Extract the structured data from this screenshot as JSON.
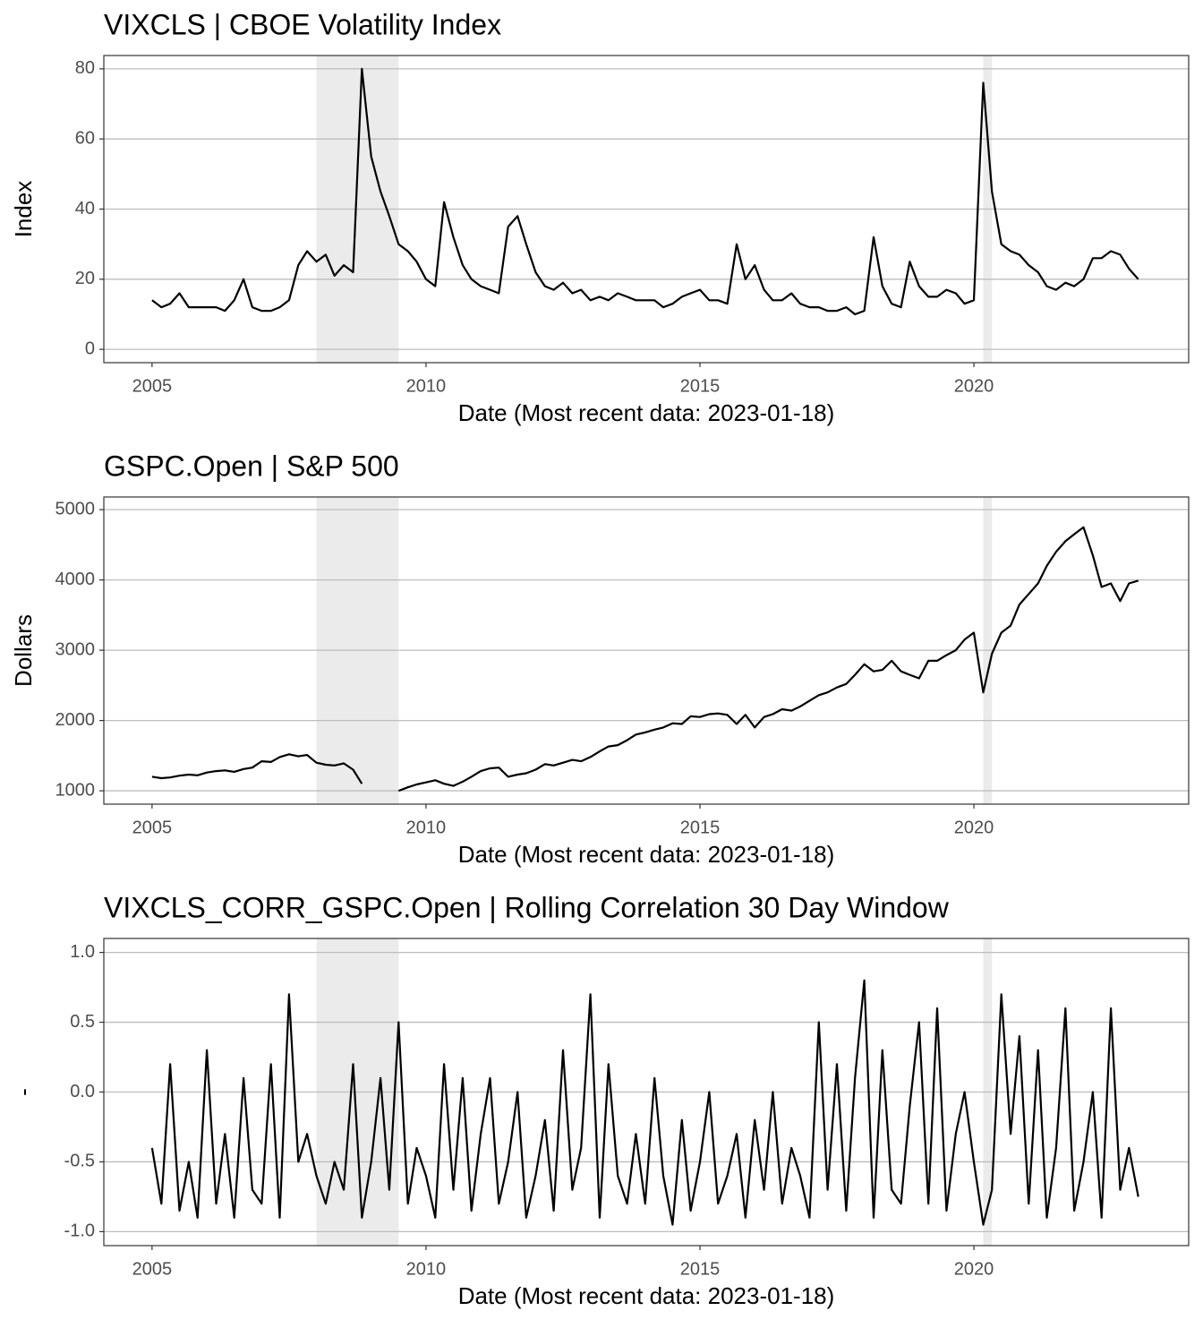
{
  "chart_data": [
    {
      "type": "line",
      "title": "VIXCLS | CBOE Volatility Index",
      "x_label": "Date (Most recent data: 2023-01-18)",
      "y_label": "Index",
      "x": [
        2005,
        2005.17,
        2005.33,
        2005.5,
        2005.67,
        2005.83,
        2006,
        2006.17,
        2006.33,
        2006.5,
        2006.67,
        2006.83,
        2007,
        2007.17,
        2007.33,
        2007.5,
        2007.67,
        2007.83,
        2008,
        2008.17,
        2008.33,
        2008.5,
        2008.67,
        2008.83,
        2009,
        2009.17,
        2009.33,
        2009.5,
        2009.67,
        2009.83,
        2010,
        2010.17,
        2010.33,
        2010.5,
        2010.67,
        2010.83,
        2011,
        2011.17,
        2011.33,
        2011.5,
        2011.67,
        2011.83,
        2012,
        2012.17,
        2012.33,
        2012.5,
        2012.67,
        2012.83,
        2013,
        2013.17,
        2013.33,
        2013.5,
        2013.67,
        2013.83,
        2014,
        2014.17,
        2014.33,
        2014.5,
        2014.67,
        2014.83,
        2015,
        2015.17,
        2015.33,
        2015.5,
        2015.67,
        2015.83,
        2016,
        2016.17,
        2016.33,
        2016.5,
        2016.67,
        2016.83,
        2017,
        2017.17,
        2017.33,
        2017.5,
        2017.67,
        2017.83,
        2018,
        2018.17,
        2018.33,
        2018.5,
        2018.67,
        2018.83,
        2019,
        2019.17,
        2019.33,
        2019.5,
        2019.67,
        2019.83,
        2020,
        2020.17,
        2020.33,
        2020.5,
        2020.67,
        2020.83,
        2021,
        2021.17,
        2021.33,
        2021.5,
        2021.67,
        2021.83,
        2022,
        2022.17,
        2022.33,
        2022.5,
        2022.67,
        2022.83,
        2023
      ],
      "values": [
        14,
        12,
        13,
        16,
        12,
        12,
        12,
        12,
        11,
        14,
        20,
        12,
        11,
        11,
        12,
        14,
        24,
        28,
        25,
        27,
        21,
        24,
        22,
        80,
        55,
        45,
        38,
        30,
        28,
        25,
        20,
        18,
        42,
        32,
        24,
        20,
        18,
        17,
        16,
        35,
        38,
        30,
        22,
        18,
        17,
        19,
        16,
        17,
        14,
        15,
        14,
        16,
        15,
        14,
        14,
        14,
        12,
        13,
        15,
        16,
        17,
        14,
        14,
        13,
        30,
        20,
        24,
        17,
        14,
        14,
        16,
        13,
        12,
        12,
        11,
        11,
        12,
        10,
        11,
        32,
        18,
        13,
        12,
        25,
        18,
        15,
        15,
        17,
        16,
        13,
        14,
        76,
        45,
        30,
        28,
        27,
        24,
        22,
        18,
        17,
        19,
        18,
        20,
        26,
        26,
        28,
        27,
        23,
        20
      ],
      "color": "#000000",
      "shaded_regions": [
        [
          2008.0,
          2009.5
        ],
        [
          2020.17,
          2020.33
        ]
      ],
      "shade_color": "#ebebeb",
      "xlim": [
        2004.12,
        2023.92
      ],
      "xticks": [
        2005,
        2010,
        2015,
        2020
      ],
      "ylim": [
        -3.8,
        83.8
      ],
      "yticks": [
        0,
        20,
        40,
        60,
        80
      ],
      "grid": true
    },
    {
      "type": "line",
      "title": "GSPC.Open | S&P 500",
      "x_label": "Date (Most recent data: 2023-01-18)",
      "y_label": "Dollars",
      "x": [
        2005,
        2005.17,
        2005.33,
        2005.5,
        2005.67,
        2005.83,
        2006,
        2006.17,
        2006.33,
        2006.5,
        2006.67,
        2006.83,
        2007,
        2007.17,
        2007.33,
        2007.5,
        2007.67,
        2007.83,
        2008,
        2008.17,
        2008.33,
        2008.5,
        2008.67,
        2008.83,
        2009,
        2009.17,
        2009.33,
        2009.5,
        2009.67,
        2009.83,
        2010,
        2010.17,
        2010.33,
        2010.5,
        2010.67,
        2010.83,
        2011,
        2011.17,
        2011.33,
        2011.5,
        2011.67,
        2011.83,
        2012,
        2012.17,
        2012.33,
        2012.5,
        2012.67,
        2012.83,
        2013,
        2013.17,
        2013.33,
        2013.5,
        2013.67,
        2013.83,
        2014,
        2014.17,
        2014.33,
        2014.5,
        2014.67,
        2014.83,
        2015,
        2015.17,
        2015.33,
        2015.5,
        2015.67,
        2015.83,
        2016,
        2016.17,
        2016.33,
        2016.5,
        2016.67,
        2016.83,
        2017,
        2017.17,
        2017.33,
        2017.5,
        2017.67,
        2017.83,
        2018,
        2018.17,
        2018.33,
        2018.5,
        2018.67,
        2018.83,
        2019,
        2019.17,
        2019.33,
        2019.5,
        2019.67,
        2019.83,
        2020,
        2020.17,
        2020.33,
        2020.5,
        2020.67,
        2020.83,
        2021,
        2021.17,
        2021.33,
        2021.5,
        2021.67,
        2021.83,
        2022,
        2022.17,
        2022.33,
        2022.5,
        2022.67,
        2022.83,
        2023
      ],
      "values": [
        1200,
        1180,
        1190,
        1215,
        1230,
        1220,
        1260,
        1280,
        1290,
        1270,
        1310,
        1330,
        1420,
        1410,
        1480,
        1520,
        1490,
        1510,
        1400,
        1370,
        1360,
        1390,
        1300,
        1100,
        null,
        null,
        null,
        1000,
        1050,
        1090,
        1120,
        1150,
        1100,
        1070,
        1130,
        1200,
        1280,
        1320,
        1330,
        1200,
        1230,
        1250,
        1300,
        1380,
        1360,
        1400,
        1440,
        1420,
        1480,
        1560,
        1630,
        1650,
        1720,
        1800,
        1830,
        1870,
        1900,
        1960,
        1950,
        2060,
        2050,
        2090,
        2100,
        2080,
        1950,
        2080,
        1900,
        2050,
        2090,
        2160,
        2140,
        2200,
        2280,
        2360,
        2400,
        2470,
        2520,
        2650,
        2800,
        2700,
        2720,
        2850,
        2700,
        2650,
        2600,
        2850,
        2850,
        2930,
        3000,
        3150,
        3250,
        2400,
        2950,
        3250,
        3350,
        3650,
        3800,
        3950,
        4200,
        4400,
        4550,
        4650,
        4750,
        4350,
        3900,
        3950,
        3700,
        3950,
        3990
      ],
      "color": "#000000",
      "shaded_regions": [
        [
          2008.0,
          2009.5
        ],
        [
          2020.17,
          2020.33
        ]
      ],
      "shade_color": "#ebebeb",
      "xlim": [
        2004.12,
        2023.92
      ],
      "xticks": [
        2005,
        2010,
        2015,
        2020
      ],
      "ylim": [
        810,
        5180
      ],
      "yticks": [
        1000,
        2000,
        3000,
        4000,
        5000
      ],
      "grid": true
    },
    {
      "type": "line",
      "title": "VIXCLS_CORR_GSPC.Open | Rolling Correlation  30  Day Window",
      "x_label": "Date (Most recent data: 2023-01-18)",
      "y_label": "-",
      "x": [
        2005,
        2005.17,
        2005.33,
        2005.5,
        2005.67,
        2005.83,
        2006,
        2006.17,
        2006.33,
        2006.5,
        2006.67,
        2006.83,
        2007,
        2007.17,
        2007.33,
        2007.5,
        2007.67,
        2007.83,
        2008,
        2008.17,
        2008.33,
        2008.5,
        2008.67,
        2008.83,
        2009,
        2009.17,
        2009.33,
        2009.5,
        2009.67,
        2009.83,
        2010,
        2010.17,
        2010.33,
        2010.5,
        2010.67,
        2010.83,
        2011,
        2011.17,
        2011.33,
        2011.5,
        2011.67,
        2011.83,
        2012,
        2012.17,
        2012.33,
        2012.5,
        2012.67,
        2012.83,
        2013,
        2013.17,
        2013.33,
        2013.5,
        2013.67,
        2013.83,
        2014,
        2014.17,
        2014.33,
        2014.5,
        2014.67,
        2014.83,
        2015,
        2015.17,
        2015.33,
        2015.5,
        2015.67,
        2015.83,
        2016,
        2016.17,
        2016.33,
        2016.5,
        2016.67,
        2016.83,
        2017,
        2017.17,
        2017.33,
        2017.5,
        2017.67,
        2017.83,
        2018,
        2018.17,
        2018.33,
        2018.5,
        2018.67,
        2018.83,
        2019,
        2019.17,
        2019.33,
        2019.5,
        2019.67,
        2019.83,
        2020,
        2020.17,
        2020.33,
        2020.5,
        2020.67,
        2020.83,
        2021,
        2021.17,
        2021.33,
        2021.5,
        2021.67,
        2021.83,
        2022,
        2022.17,
        2022.33,
        2022.5,
        2022.67,
        2022.83,
        2023
      ],
      "values": [
        -0.4,
        -0.8,
        0.2,
        -0.85,
        -0.5,
        -0.9,
        0.3,
        -0.8,
        -0.3,
        -0.9,
        0.1,
        -0.7,
        -0.8,
        0.2,
        -0.9,
        0.7,
        -0.5,
        -0.3,
        -0.6,
        -0.8,
        -0.5,
        -0.7,
        0.2,
        -0.9,
        -0.5,
        0.1,
        -0.7,
        0.5,
        -0.8,
        -0.4,
        -0.6,
        -0.9,
        0.2,
        -0.7,
        0.1,
        -0.85,
        -0.3,
        0.1,
        -0.8,
        -0.5,
        0.0,
        -0.9,
        -0.6,
        -0.2,
        -0.85,
        0.3,
        -0.7,
        -0.4,
        0.7,
        -0.9,
        0.2,
        -0.6,
        -0.8,
        -0.3,
        -0.8,
        0.1,
        -0.6,
        -0.95,
        -0.2,
        -0.85,
        -0.5,
        0.0,
        -0.8,
        -0.6,
        -0.3,
        -0.9,
        -0.2,
        -0.7,
        0.0,
        -0.8,
        -0.4,
        -0.6,
        -0.9,
        0.5,
        -0.7,
        0.2,
        -0.85,
        0.1,
        0.8,
        -0.9,
        0.3,
        -0.7,
        -0.8,
        -0.1,
        0.5,
        -0.8,
        0.6,
        -0.85,
        -0.3,
        0.0,
        -0.5,
        -0.95,
        -0.7,
        0.7,
        -0.3,
        0.4,
        -0.8,
        0.3,
        -0.9,
        -0.4,
        0.6,
        -0.85,
        -0.5,
        0.0,
        -0.9,
        0.6,
        -0.7,
        -0.4,
        -0.75
      ],
      "color": "#000000",
      "shaded_regions": [
        [
          2008.0,
          2009.5
        ],
        [
          2020.17,
          2020.33
        ]
      ],
      "shade_color": "#ebebeb",
      "xlim": [
        2004.12,
        2023.92
      ],
      "xticks": [
        2005,
        2010,
        2015,
        2020
      ],
      "ylim": [
        -1.1,
        1.1
      ],
      "yticks": [
        {
          "value": -1,
          "label": "-1.0"
        },
        -0.5,
        {
          "value": 0,
          "label": "0.0"
        },
        0.5,
        {
          "value": 1,
          "label": "1.0"
        }
      ],
      "grid": true
    }
  ]
}
